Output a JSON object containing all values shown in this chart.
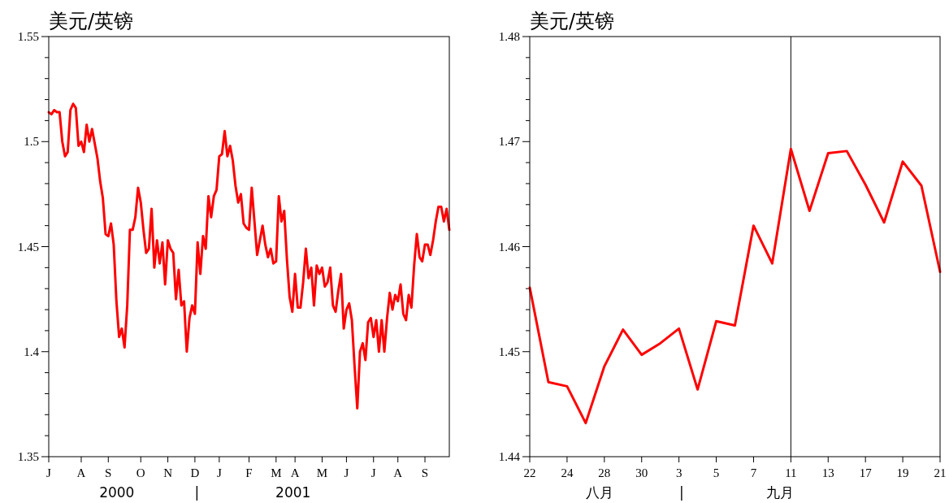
{
  "chart_data": [
    {
      "type": "line",
      "title": "美元/英镑",
      "annotations": [
        "2000",
        "|",
        "2001"
      ],
      "categories": [
        "J",
        null,
        null,
        null,
        null,
        null,
        null,
        null,
        null,
        null,
        null,
        null,
        "A",
        null,
        null,
        null,
        null,
        null,
        null,
        null,
        null,
        null,
        "S",
        null,
        null,
        null,
        null,
        null,
        null,
        null,
        null,
        null,
        null,
        null,
        "O",
        null,
        null,
        null,
        null,
        null,
        null,
        null,
        null,
        null,
        "N",
        null,
        null,
        null,
        null,
        null,
        null,
        null,
        null,
        null,
        "D",
        null,
        null,
        null,
        null,
        null,
        null,
        null,
        null,
        "J",
        null,
        null,
        null,
        null,
        null,
        null,
        null,
        null,
        null,
        null,
        "F",
        null,
        null,
        null,
        null,
        null,
        null,
        null,
        null,
        null,
        "M",
        null,
        null,
        null,
        null,
        null,
        null,
        "A",
        null,
        null,
        null,
        null,
        null,
        null,
        null,
        null,
        null,
        "M",
        null,
        null,
        null,
        null,
        null,
        null,
        null,
        null,
        "J",
        null,
        null,
        null,
        null,
        null,
        null,
        null,
        null,
        null,
        "J",
        null,
        null,
        null,
        null,
        null,
        null,
        null,
        null,
        "A",
        null,
        null,
        null,
        null,
        null,
        null,
        null,
        null,
        null,
        "S",
        null,
        null,
        null,
        null,
        null,
        null,
        null,
        null,
        null
      ],
      "ylim": [
        1.35,
        1.55
      ],
      "yticks": [
        1.35,
        {
          "value": 1.36,
          "label": null
        },
        {
          "value": 1.37,
          "label": null
        },
        {
          "value": 1.38,
          "label": null
        },
        {
          "value": 1.39,
          "label": null
        },
        1.4,
        {
          "value": 1.41,
          "label": null
        },
        {
          "value": 1.42,
          "label": null
        },
        {
          "value": 1.43,
          "label": null
        },
        {
          "value": 1.44,
          "label": null
        },
        1.45,
        {
          "value": 1.46,
          "label": null
        },
        {
          "value": 1.47,
          "label": null
        },
        {
          "value": 1.48,
          "label": null
        },
        {
          "value": 1.49,
          "label": null
        },
        1.5,
        {
          "value": 1.51,
          "label": null
        },
        {
          "value": 1.52,
          "label": null
        },
        {
          "value": 1.53,
          "label": null
        },
        {
          "value": 1.54,
          "label": null
        },
        1.55
      ],
      "series": [
        {
          "color": "#ff0000",
          "values": [
            1.514,
            1.513,
            1.515,
            1.514,
            1.514,
            1.5,
            1.493,
            1.495,
            1.515,
            1.518,
            1.516,
            1.498,
            1.5,
            1.495,
            1.508,
            1.5,
            1.506,
            1.499,
            1.492,
            1.481,
            1.473,
            1.456,
            1.455,
            1.461,
            1.451,
            1.424,
            1.407,
            1.411,
            1.402,
            1.422,
            1.458,
            1.458,
            1.464,
            1.478,
            1.471,
            1.458,
            1.447,
            1.449,
            1.468,
            1.44,
            1.453,
            1.442,
            1.452,
            1.432,
            1.453,
            1.449,
            1.447,
            1.425,
            1.439,
            1.422,
            1.424,
            1.4,
            1.416,
            1.422,
            1.418,
            1.452,
            1.437,
            1.455,
            1.449,
            1.474,
            1.464,
            1.474,
            1.477,
            1.493,
            1.494,
            1.505,
            1.493,
            1.498,
            1.491,
            1.479,
            1.471,
            1.475,
            1.461,
            1.459,
            1.458,
            1.478,
            1.462,
            1.446,
            1.453,
            1.46,
            1.451,
            1.445,
            1.449,
            1.442,
            1.443,
            1.474,
            1.462,
            1.467,
            1.444,
            1.426,
            1.419,
            1.437,
            1.421,
            1.421,
            1.433,
            1.449,
            1.435,
            1.44,
            1.422,
            1.441,
            1.437,
            1.44,
            1.431,
            1.433,
            1.44,
            1.422,
            1.419,
            1.429,
            1.437,
            1.411,
            1.42,
            1.423,
            1.415,
            1.393,
            1.373,
            1.4,
            1.404,
            1.396,
            1.414,
            1.416,
            1.407,
            1.415,
            1.4,
            1.415,
            1.4,
            1.416,
            1.428,
            1.42,
            1.427,
            1.424,
            1.432,
            1.418,
            1.415,
            1.427,
            1.421,
            1.441,
            1.456,
            1.445,
            1.443,
            1.451,
            1.451,
            1.446,
            1.453,
            1.462,
            1.469,
            1.469,
            1.462,
            1.468,
            1.458
          ]
        }
      ]
    },
    {
      "type": "line",
      "title": "美元/英镑",
      "annotations": [
        "八月",
        "|",
        "九月"
      ],
      "categories": [
        "22",
        null,
        "24",
        null,
        "28",
        null,
        "30",
        null,
        "3",
        null,
        "5",
        null,
        "7",
        null,
        "11",
        null,
        "13",
        null,
        "17",
        null,
        "19",
        null,
        "21"
      ],
      "ylim": [
        1.44,
        1.48
      ],
      "yticks": [
        1.44,
        {
          "value": 1.442,
          "label": null
        },
        {
          "value": 1.444,
          "label": null
        },
        {
          "value": 1.446,
          "label": null
        },
        {
          "value": 1.448,
          "label": null
        },
        1.45,
        {
          "value": 1.452,
          "label": null
        },
        {
          "value": 1.454,
          "label": null
        },
        {
          "value": 1.456,
          "label": null
        },
        {
          "value": 1.458,
          "label": null
        },
        1.46,
        {
          "value": 1.462,
          "label": null
        },
        {
          "value": 1.464,
          "label": null
        },
        {
          "value": 1.466,
          "label": null
        },
        {
          "value": 1.468,
          "label": null
        },
        1.47,
        {
          "value": 1.472,
          "label": null
        },
        {
          "value": 1.474,
          "label": null
        },
        {
          "value": 1.476,
          "label": null
        },
        {
          "value": 1.478,
          "label": null
        },
        1.48
      ],
      "ref_lines": [
        {
          "axis": "x",
          "value": "11",
          "color": "#000000"
        }
      ],
      "series": [
        {
          "color": "#ff0000",
          "values": [
            1.4561,
            1.4471,
            1.4467,
            1.4432,
            1.4486,
            1.4521,
            1.4497,
            1.4508,
            1.4522,
            1.4464,
            1.4529,
            1.4525,
            1.462,
            1.4584,
            1.4693,
            1.4634,
            1.4689,
            1.4691,
            1.4659,
            1.4623,
            1.4681,
            1.4658,
            1.4576
          ]
        }
      ]
    }
  ]
}
